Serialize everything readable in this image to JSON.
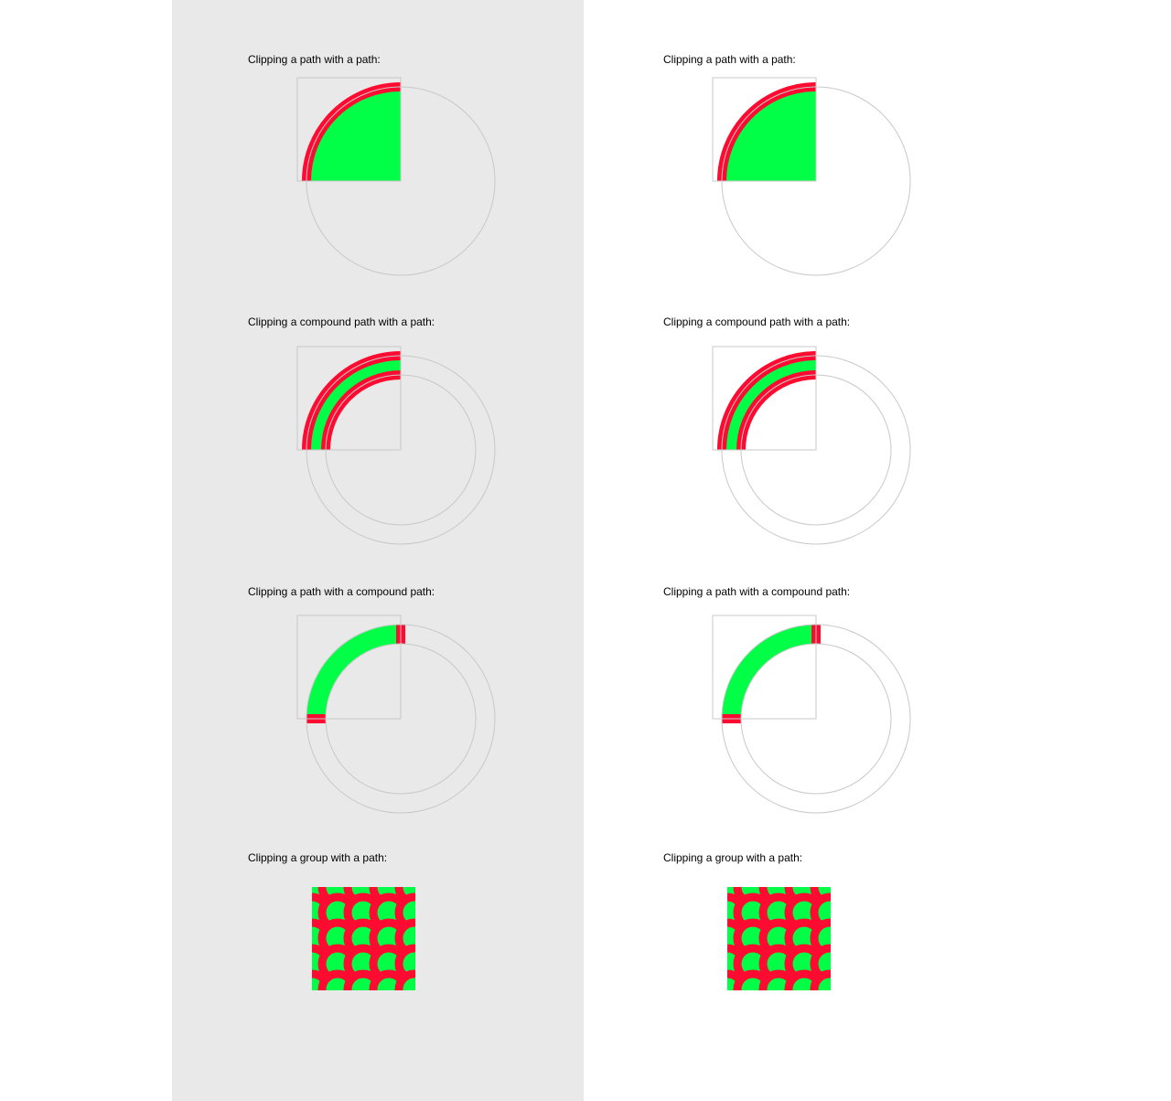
{
  "colors": {
    "left_background": "#e9e9e9",
    "right_background": "#ffffff",
    "guide": "#c8c8c8",
    "red": "#ff0a30",
    "green": "#00ff46"
  },
  "panels": [
    {
      "examples": [
        {
          "label": "Clipping a path with a path:"
        },
        {
          "label": "Clipping a compound path with a path:"
        },
        {
          "label": "Clipping a path with a compound path:"
        },
        {
          "label": "Clipping a group with a path:"
        }
      ]
    },
    {
      "examples": [
        {
          "label": "Clipping a path with a path:"
        },
        {
          "label": "Clipping a compound path with a path:"
        },
        {
          "label": "Clipping a path with a compound path:"
        },
        {
          "label": "Clipping a group with a path:"
        }
      ]
    }
  ]
}
